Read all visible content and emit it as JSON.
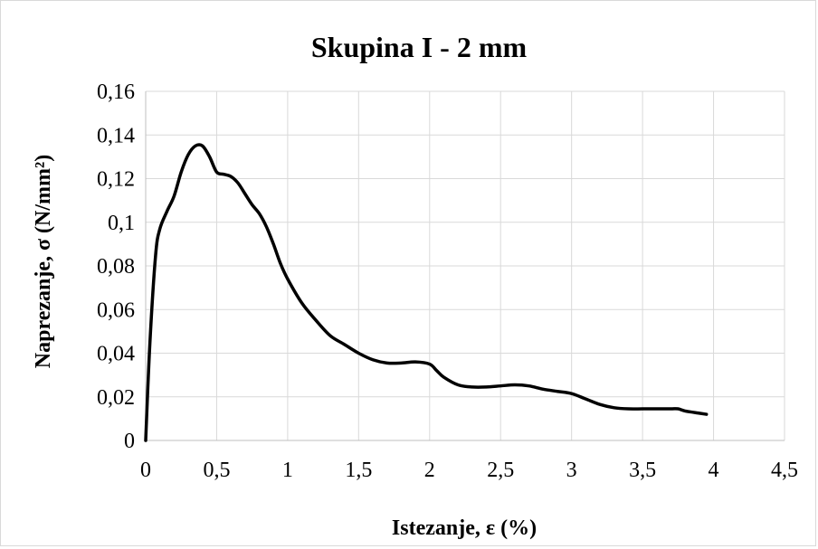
{
  "chart_data": {
    "type": "line",
    "title": "Skupina I - 2 mm",
    "xlabel": "Istezanje, ε (%)",
    "ylabel": "Naprezanje, σ (N/mm²)",
    "xlim": [
      0,
      4.5
    ],
    "ylim": [
      0,
      0.16
    ],
    "x_ticks": [
      0,
      0.5,
      1,
      1.5,
      2,
      2.5,
      3,
      3.5,
      4,
      4.5
    ],
    "x_tick_labels": [
      "0",
      "0,5",
      "1",
      "1,5",
      "2",
      "2,5",
      "3",
      "3,5",
      "4",
      "4,5"
    ],
    "y_ticks": [
      0,
      0.02,
      0.04,
      0.06,
      0.08,
      0.1,
      0.12,
      0.14,
      0.16
    ],
    "y_tick_labels": [
      "0",
      "0,02",
      "0,04",
      "0,06",
      "0,08",
      "0,1",
      "0,12",
      "0,14",
      "0,16"
    ],
    "grid": true,
    "legend": "none",
    "line_color": "#000000",
    "series": [
      {
        "x": [
          0,
          0.03,
          0.07,
          0.1,
          0.15,
          0.2,
          0.25,
          0.3,
          0.35,
          0.4,
          0.45,
          0.5,
          0.55,
          0.6,
          0.65,
          0.7,
          0.75,
          0.8,
          0.85,
          0.9,
          0.95,
          1.0,
          1.1,
          1.2,
          1.3,
          1.4,
          1.5,
          1.6,
          1.7,
          1.8,
          1.9,
          2.0,
          2.05,
          2.1,
          2.2,
          2.3,
          2.4,
          2.5,
          2.6,
          2.7,
          2.8,
          2.9,
          3.0,
          3.1,
          3.2,
          3.3,
          3.4,
          3.5,
          3.6,
          3.7,
          3.75,
          3.8,
          3.9,
          3.95
        ],
        "values": [
          0,
          0.045,
          0.085,
          0.097,
          0.105,
          0.112,
          0.123,
          0.131,
          0.135,
          0.135,
          0.13,
          0.123,
          0.122,
          0.121,
          0.118,
          0.113,
          0.108,
          0.104,
          0.098,
          0.09,
          0.081,
          0.074,
          0.063,
          0.055,
          0.048,
          0.044,
          0.04,
          0.037,
          0.0355,
          0.0355,
          0.036,
          0.035,
          0.032,
          0.029,
          0.0255,
          0.0245,
          0.0245,
          0.025,
          0.0255,
          0.025,
          0.0235,
          0.0225,
          0.0215,
          0.019,
          0.0165,
          0.015,
          0.0145,
          0.0145,
          0.0145,
          0.0145,
          0.0145,
          0.0135,
          0.0125,
          0.012
        ]
      }
    ]
  }
}
